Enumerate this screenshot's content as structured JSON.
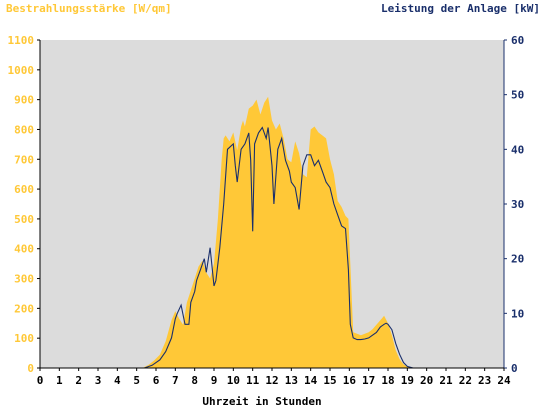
{
  "chart_data": {
    "type": "area",
    "title_left": "Bestrahlungsstärke [W/qm]",
    "title_right": "Leistung der Anlage [kW]",
    "xlabel": "Uhrzeit in Stunden",
    "x_ticks": [
      "0",
      "1",
      "2",
      "3",
      "4",
      "5",
      "6",
      "7",
      "8",
      "9",
      "10",
      "11",
      "12",
      "13",
      "14",
      "15",
      "16",
      "17",
      "18",
      "19",
      "20",
      "21",
      "22",
      "23",
      "24"
    ],
    "xlim": [
      0,
      24
    ],
    "y_left_ticks": [
      "0",
      "100",
      "200",
      "300",
      "400",
      "500",
      "600",
      "700",
      "800",
      "900",
      "1000",
      "1100"
    ],
    "ylim_left": [
      0,
      1100
    ],
    "y_right_ticks": [
      "0",
      "10",
      "20",
      "30",
      "40",
      "50",
      "60"
    ],
    "ylim_right": [
      0,
      60
    ],
    "grid": false,
    "colors": {
      "background": "#DCDCDC",
      "irradiance": "#FFC837",
      "power": "#1A2F6B",
      "left_axis_text": "#FFC837",
      "right_axis_text": "#1A2F6B"
    },
    "series": [
      {
        "name": "Bestrahlungsstärke [W/qm]",
        "axis": "left",
        "style": "area",
        "x": [
          0,
          5.3,
          5.6,
          5.9,
          6.2,
          6.5,
          6.8,
          7.0,
          7.2,
          7.4,
          7.6,
          7.8,
          8.0,
          8.2,
          8.4,
          8.6,
          8.8,
          9.0,
          9.2,
          9.4,
          9.5,
          9.6,
          9.8,
          10.0,
          10.2,
          10.4,
          10.5,
          10.6,
          10.8,
          11.0,
          11.2,
          11.4,
          11.6,
          11.8,
          12.0,
          12.2,
          12.4,
          12.6,
          12.8,
          13.0,
          13.2,
          13.4,
          13.6,
          13.8,
          14.0,
          14.2,
          14.4,
          14.6,
          14.8,
          15.0,
          15.2,
          15.4,
          15.6,
          15.8,
          15.95,
          16.05,
          16.2,
          16.4,
          16.6,
          16.8,
          17.0,
          17.2,
          17.4,
          17.6,
          17.8,
          18.0,
          18.2,
          18.4,
          18.6,
          18.8,
          19.0,
          19.2,
          19.4,
          24
        ],
        "y": [
          0,
          0,
          10,
          25,
          45,
          90,
          160,
          190,
          165,
          145,
          220,
          260,
          300,
          340,
          360,
          320,
          300,
          350,
          500,
          700,
          770,
          780,
          760,
          790,
          730,
          810,
          830,
          810,
          870,
          880,
          900,
          850,
          890,
          910,
          830,
          800,
          820,
          770,
          700,
          690,
          760,
          720,
          650,
          640,
          800,
          810,
          790,
          780,
          770,
          700,
          650,
          560,
          540,
          510,
          500,
          350,
          120,
          115,
          110,
          115,
          120,
          130,
          145,
          160,
          175,
          150,
          110,
          60,
          30,
          12,
          5,
          0,
          0,
          0
        ]
      },
      {
        "name": "Leistung der Anlage [kW]",
        "axis": "right",
        "style": "line",
        "x": [
          0,
          5.4,
          5.8,
          6.2,
          6.5,
          6.8,
          7.0,
          7.1,
          7.3,
          7.5,
          7.7,
          7.8,
          8.0,
          8.1,
          8.3,
          8.5,
          8.6,
          8.8,
          9.0,
          9.1,
          9.3,
          9.5,
          9.7,
          10.0,
          10.1,
          10.2,
          10.4,
          10.6,
          10.8,
          10.9,
          11.0,
          11.1,
          11.3,
          11.5,
          11.7,
          11.8,
          12.0,
          12.1,
          12.3,
          12.5,
          12.7,
          12.9,
          13.0,
          13.2,
          13.4,
          13.6,
          13.8,
          14.0,
          14.2,
          14.4,
          14.6,
          14.8,
          15.0,
          15.2,
          15.4,
          15.6,
          15.8,
          15.95,
          16.05,
          16.2,
          16.4,
          16.6,
          16.8,
          17.0,
          17.2,
          17.4,
          17.6,
          17.8,
          17.9,
          18.0,
          18.2,
          18.4,
          18.6,
          18.8,
          19.0,
          19.3,
          24
        ],
        "y": [
          0,
          0,
          0.5,
          1.5,
          3.0,
          5.5,
          9.0,
          10.0,
          11.5,
          8.0,
          8.0,
          12.0,
          14.0,
          16.0,
          18.0,
          20.0,
          17.5,
          22.0,
          15.0,
          16.0,
          22.0,
          30.0,
          40.0,
          41.0,
          37.0,
          34.0,
          40.0,
          41.0,
          43.0,
          38.0,
          25.0,
          41.0,
          43.0,
          44.0,
          42.0,
          44.0,
          37.0,
          30.0,
          40.0,
          42.0,
          38.0,
          36.0,
          34.0,
          33.0,
          29.0,
          37.0,
          39.0,
          39.0,
          37.0,
          38.0,
          36.0,
          34.0,
          33.0,
          30.0,
          28.0,
          26.0,
          25.5,
          18.0,
          8.0,
          5.5,
          5.2,
          5.2,
          5.3,
          5.5,
          6.0,
          6.5,
          7.5,
          8.0,
          8.2,
          8.0,
          7.0,
          4.5,
          2.5,
          1.0,
          0.3,
          0,
          0
        ]
      }
    ]
  }
}
